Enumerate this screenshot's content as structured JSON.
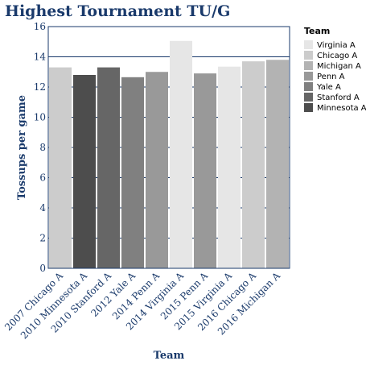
{
  "chart_data": {
    "type": "bar",
    "title": "Highest Tournament TU/G",
    "xlabel": "Team",
    "ylabel": "Tossups per game",
    "ylim": [
      0,
      16
    ],
    "yticks": [
      0,
      2,
      4,
      6,
      8,
      10,
      12,
      14,
      16
    ],
    "grid": true,
    "legend_placement": "right",
    "legend_title": "Team",
    "categories": [
      "2007 Chicago A",
      "2010 Minnesota A",
      "2010 Stanford A",
      "2012 Yale A",
      "2014 Penn A",
      "2014 Virginia A",
      "2015 Penn A",
      "2015 Virginia A",
      "2016 Chicago A",
      "2016 Michigan A"
    ],
    "values": [
      13.3,
      12.8,
      13.3,
      12.65,
      13.0,
      15.05,
      12.9,
      13.35,
      13.7,
      13.8
    ],
    "bar_teams": [
      "Chicago A",
      "Minnesota A",
      "Stanford A",
      "Yale A",
      "Penn A",
      "Virginia A",
      "Penn A",
      "Virginia A",
      "Chicago A",
      "Michigan A"
    ],
    "legend": [
      {
        "name": "Virginia A",
        "color": "#e6e6e6"
      },
      {
        "name": "Chicago A",
        "color": "#cccccc"
      },
      {
        "name": "Michigan A",
        "color": "#b3b3b3"
      },
      {
        "name": "Penn A",
        "color": "#999999"
      },
      {
        "name": "Yale A",
        "color": "#808080"
      },
      {
        "name": "Stanford A",
        "color": "#666666"
      },
      {
        "name": "Minnesota A",
        "color": "#4d4d4d"
      }
    ],
    "colors": {
      "axis": "#1a3a6b",
      "grid": "#1a3a6b",
      "text": "#1a3a6b"
    }
  }
}
